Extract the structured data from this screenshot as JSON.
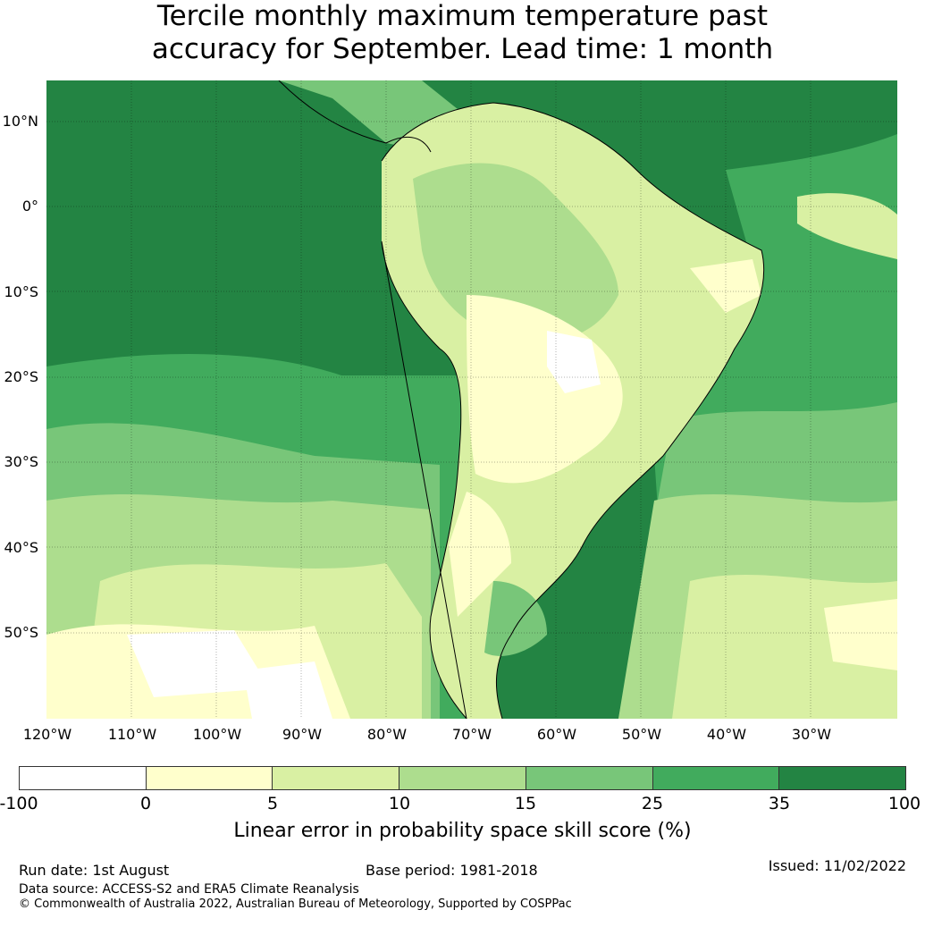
{
  "title": {
    "line1": "Tercile monthly maximum temperature past",
    "line2": "accuracy for September. Lead time: 1 month"
  },
  "map": {
    "lat_labels": [
      "10°N",
      "0°",
      "10°S",
      "20°S",
      "30°S",
      "40°S",
      "50°S"
    ],
    "lon_labels": [
      "120°W",
      "110°W",
      "100°W",
      "90°W",
      "80°W",
      "70°W",
      "60°W",
      "50°W",
      "40°W",
      "30°W"
    ],
    "graticule_color": "#000000"
  },
  "colorbar": {
    "ticks": [
      "-100",
      "0",
      "5",
      "10",
      "15",
      "25",
      "35",
      "100"
    ],
    "colors": [
      "#ffffff",
      "#ffffcc",
      "#d9f0a3",
      "#addd8e",
      "#78c679",
      "#41ab5d",
      "#238443"
    ],
    "label": "Linear error in probability space skill score (%)"
  },
  "footer": {
    "run_date": "Run date: 1st August",
    "base_period": "Base period: 1981-2018",
    "issued": "Issued: 11/02/2022",
    "data_source": "Data source: ACCESS-S2 and ERA5 Climate Reanalysis",
    "copyright": "© Commonwealth of Australia 2022, Australian Bureau of Meteorology, Supported by COSPPac"
  }
}
